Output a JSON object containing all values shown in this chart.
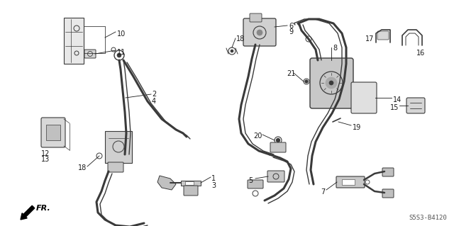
{
  "diagram_code": "S5S3-B4120",
  "bg_color": "#ffffff",
  "lc": "#3a3a3a",
  "tc": "#1a1a1a",
  "fig_width": 6.4,
  "fig_height": 3.19,
  "dpi": 100
}
